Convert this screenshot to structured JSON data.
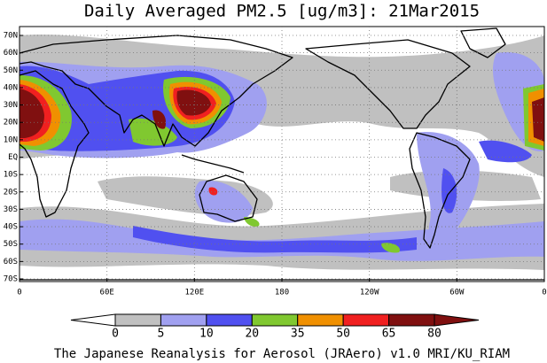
{
  "title": "Daily Averaged PM2.5 [ug/m3]: 21Mar2015",
  "lat_labels": [
    "70N",
    "60N",
    "50N",
    "40N",
    "30N",
    "20N",
    "10N",
    "EQ",
    "10S",
    "20S",
    "30S",
    "40S",
    "50S",
    "60S",
    "70S"
  ],
  "lon_labels": [
    "0",
    "60E",
    "120E",
    "180",
    "120W",
    "60W",
    "0"
  ],
  "colorbar": {
    "levels": [
      0,
      5,
      10,
      20,
      35,
      50,
      65,
      80
    ],
    "colors": [
      "#ffffff",
      "#c0c0c0",
      "#a0a0f0",
      "#5050f0",
      "#80c830",
      "#f09000",
      "#f02020",
      "#801010",
      "#801010"
    ]
  },
  "footer": "The Japanese Reanalysis for Aerosol (JRAero) v1.0 MRI/KU_RIAM"
}
